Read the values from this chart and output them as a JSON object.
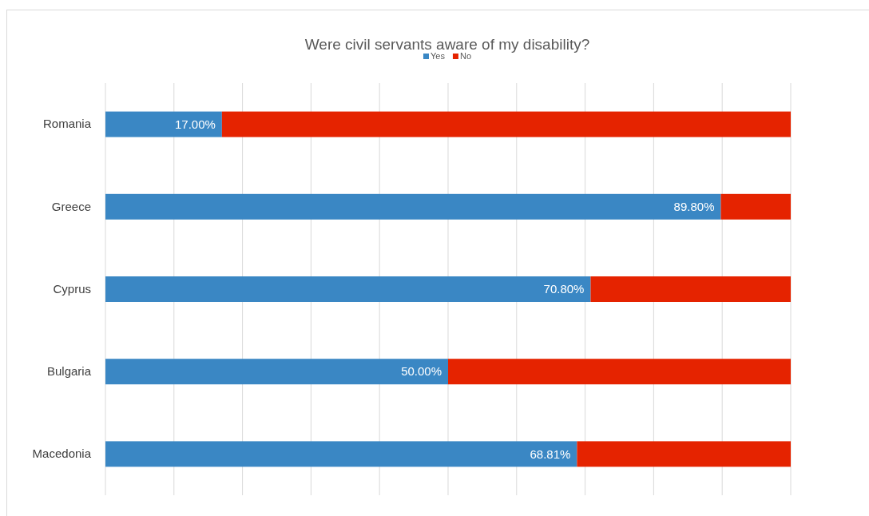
{
  "chart_data": {
    "type": "bar",
    "orientation": "horizontal",
    "stacked": true,
    "title": "Were civil servants aware of my disability?",
    "categories": [
      "Romania",
      "Greece",
      "Cyprus",
      "Bulgaria",
      "Macedonia"
    ],
    "series": [
      {
        "name": "Yes",
        "color": "#3a87c4",
        "values": [
          17.0,
          89.8,
          70.8,
          50.0,
          68.81
        ],
        "value_labels": [
          "17.00%",
          "89.80%",
          "70.80%",
          "50.00%",
          "68.81%"
        ]
      },
      {
        "name": "No",
        "color": "#e52300",
        "values": [
          83.0,
          10.2,
          29.2,
          50.0,
          31.19
        ]
      }
    ],
    "xlim": [
      0,
      100
    ],
    "xticks": [
      {
        "value": 0,
        "label": null
      },
      {
        "value": 10,
        "label": null
      },
      {
        "value": 20,
        "label": null
      },
      {
        "value": 30,
        "label": null
      },
      {
        "value": 40,
        "label": null
      },
      {
        "value": 50,
        "label": null
      },
      {
        "value": 60,
        "label": null
      },
      {
        "value": 70,
        "label": null
      },
      {
        "value": 80,
        "label": null
      },
      {
        "value": 90,
        "label": null
      },
      {
        "value": 100,
        "label": null
      }
    ],
    "grid": "x",
    "legend": "top",
    "tick_labels": "y"
  }
}
